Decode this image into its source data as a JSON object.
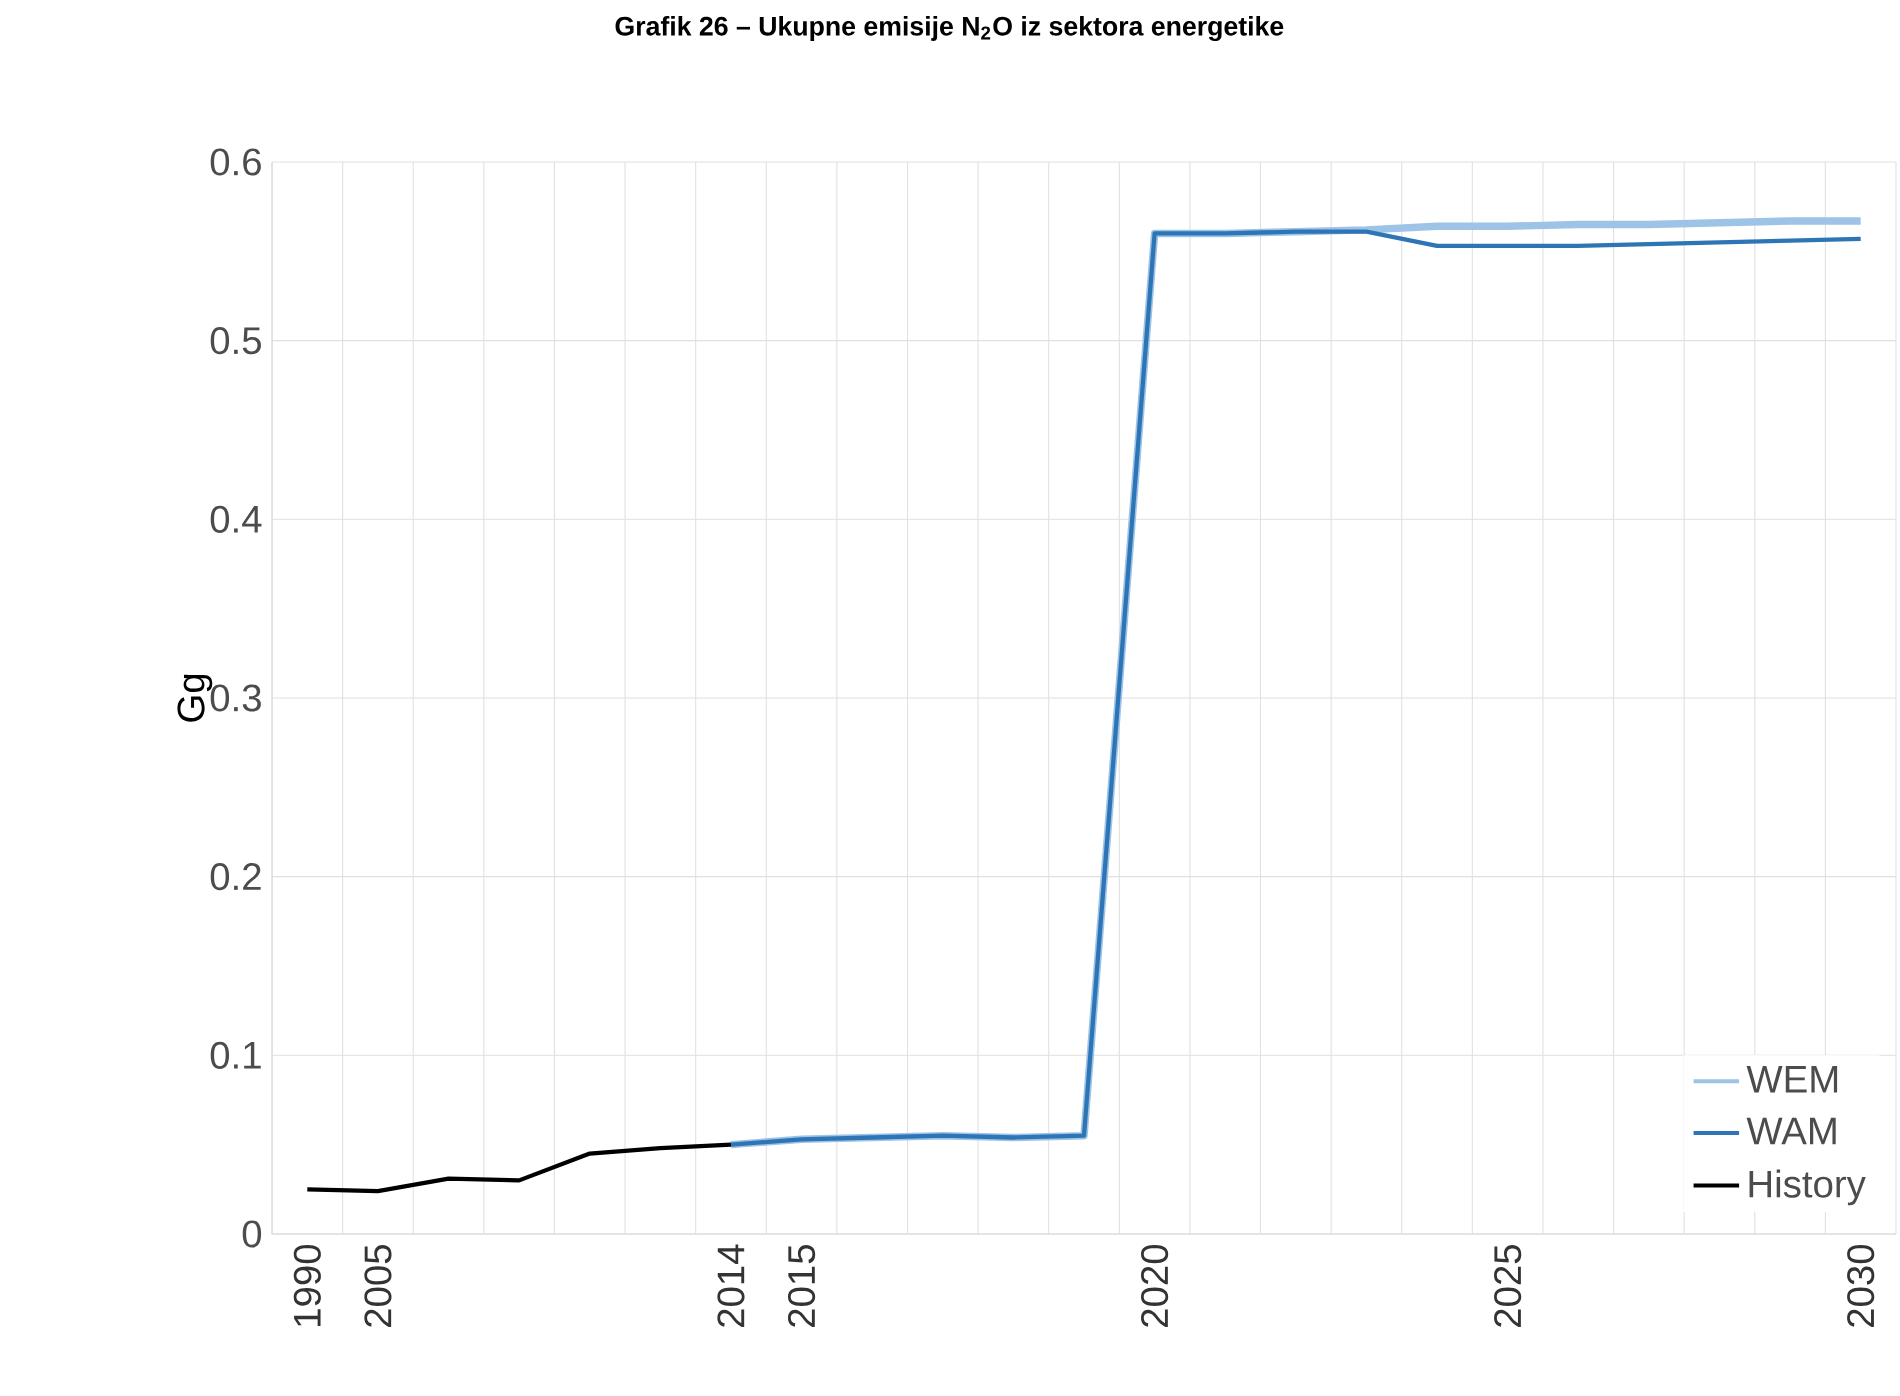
{
  "chart_data": {
    "type": "line",
    "title": "Grafik 26 – Ukupne emisije N$_{2}$O iz sektora energetike",
    "ylabel": "Gg",
    "categories": [
      "1990",
      "2005",
      null,
      null,
      null,
      null,
      "2014",
      "2015",
      null,
      null,
      null,
      null,
      "2020",
      null,
      null,
      null,
      null,
      "2025",
      null,
      null,
      null,
      null,
      "2030"
    ],
    "series": [
      {
        "name": "WEM",
        "color": "#9dc3e6",
        "values": [
          null,
          null,
          null,
          null,
          null,
          null,
          0.05,
          0.053,
          0.054,
          0.055,
          0.054,
          0.055,
          0.56,
          0.56,
          0.561,
          0.562,
          0.564,
          0.564,
          0.565,
          0.565,
          0.566,
          0.567,
          0.567
        ]
      },
      {
        "name": "WAM",
        "color": "#2e75b6",
        "values": [
          null,
          null,
          null,
          null,
          null,
          null,
          0.05,
          0.053,
          0.054,
          0.055,
          0.054,
          0.055,
          0.56,
          0.56,
          0.561,
          0.561,
          0.553,
          0.553,
          0.553,
          0.554,
          0.555,
          0.556,
          0.557
        ]
      },
      {
        "name": "History",
        "color": "#000000",
        "values": [
          0.025,
          0.024,
          0.031,
          0.03,
          0.045,
          0.048,
          0.05,
          null,
          null,
          null,
          null,
          null,
          null,
          null,
          null,
          null,
          null,
          null,
          null,
          null,
          null,
          null,
          null
        ]
      }
    ],
    "ylim": [
      0,
      0.6
    ],
    "yticks": [
      0,
      0.1,
      0.2,
      0.3,
      0.4,
      0.5,
      0.6
    ],
    "grid": true,
    "legend": "bottom right",
    "marker": "none",
    "line_style": "solid"
  }
}
